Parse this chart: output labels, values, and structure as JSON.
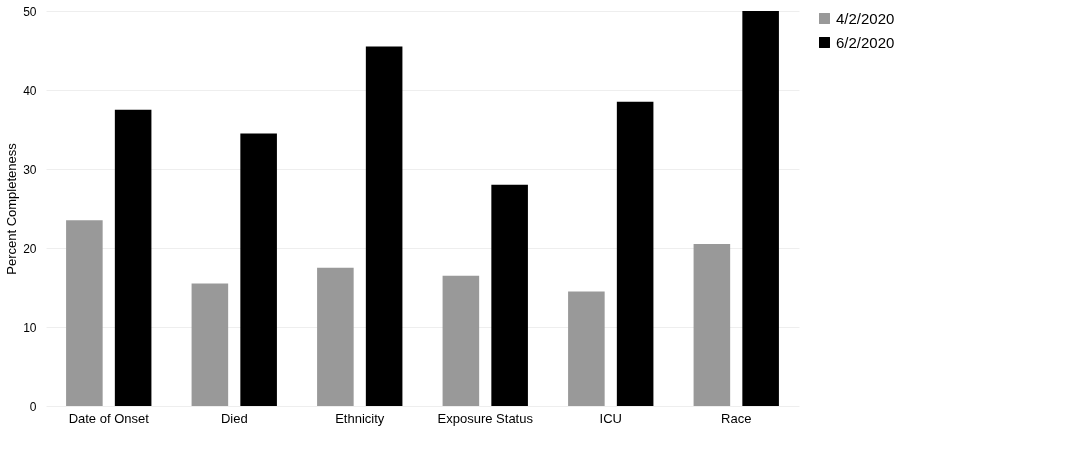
{
  "chart_data": {
    "type": "bar",
    "ylabel": "Percent Completeness",
    "categories": [
      "Date of Onset",
      "Died",
      "Ethnicity",
      "Exposure Status",
      "ICU",
      "Race"
    ],
    "series": [
      {
        "name": "4/2/2020",
        "color": "#999999",
        "values": [
          23.5,
          15.5,
          17.5,
          16.5,
          14.5,
          20.5
        ]
      },
      {
        "name": "6/2/2020",
        "color": "#000000",
        "values": [
          37.5,
          34.5,
          45.5,
          28,
          38.5,
          50
        ]
      }
    ],
    "ylim": [
      0,
      50
    ],
    "yticks": [
      0,
      10,
      20,
      30,
      40,
      50
    ],
    "grid": "y",
    "legend": "right"
  }
}
